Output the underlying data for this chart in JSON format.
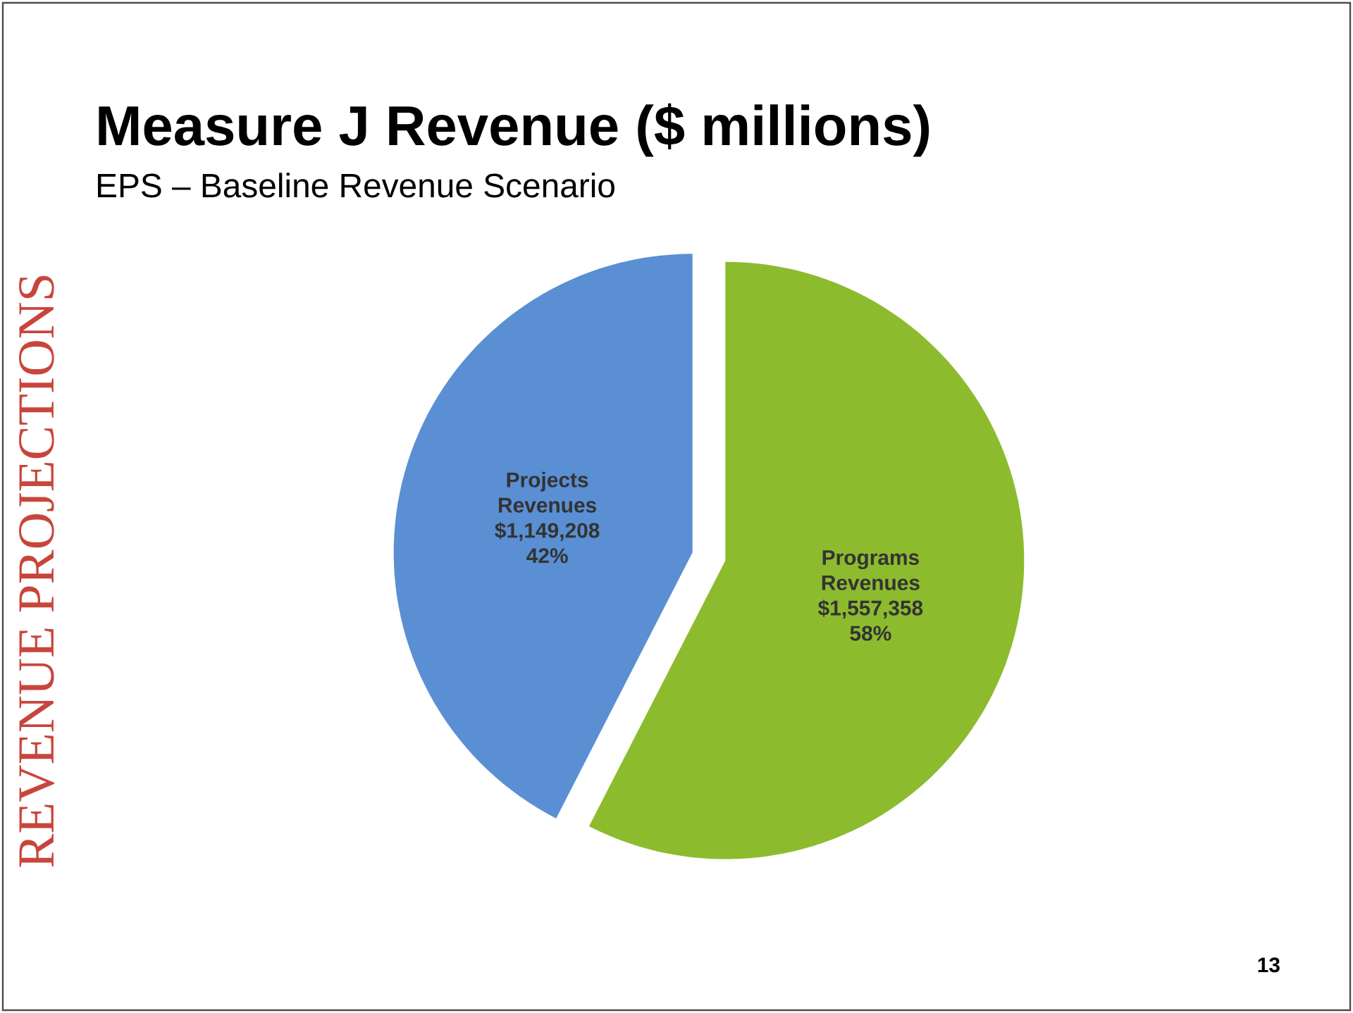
{
  "chart_data": {
    "type": "pie",
    "title": "Measure J Revenue ($ millions)",
    "subtitle": "EPS – Baseline Revenue Scenario",
    "categories": [
      "Projects Revenues",
      "Programs Revenues"
    ],
    "values": [
      1149208,
      1557358
    ],
    "value_labels": [
      "$1,149,208",
      "$1,557,358"
    ],
    "colors": [
      "#5a8fd4",
      "#8dbb2e"
    ],
    "annotations": [
      "42%",
      "58%",
      "REVENUE PROJECTIONS",
      "13"
    ]
  }
}
